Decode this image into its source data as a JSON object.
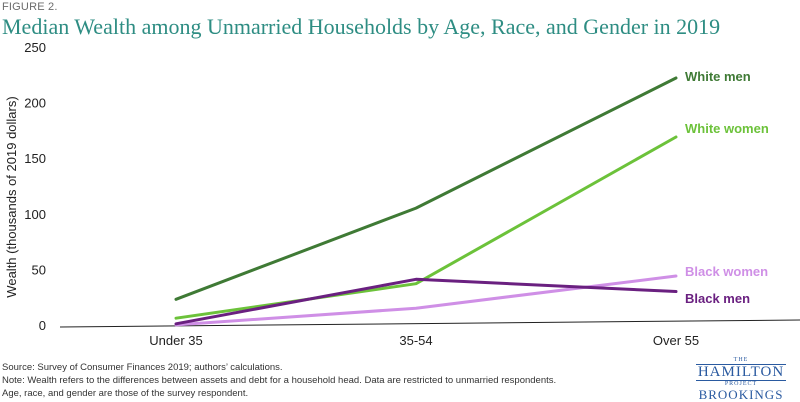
{
  "figure_label": "FIGURE 2.",
  "title": "Median Wealth among Unmarried Households by Age, Race, and Gender in 2019",
  "notes": [
    "Source: Survey of Consumer Finances 2019; authors’ calculations.",
    "Note: Wealth refers to the differences between assets and debt for a household head. Data are restricted to unmarried respondents.",
    "Age, race, and gender are those of the survey respondent."
  ],
  "logo": {
    "the": "THE",
    "hamilton": "HAMILTON",
    "project": "PROJECT",
    "brookings": "BROOKINGS"
  },
  "chart_data": {
    "type": "line",
    "categories": [
      "Under 35",
      "35-54",
      "Over 55"
    ],
    "ylabel": "Wealth  (thousands of 2019 dollars)",
    "ylim": [
      0,
      250
    ],
    "yticks": [
      0,
      50,
      100,
      150,
      200,
      250
    ],
    "grid": false,
    "series": [
      {
        "name": "White men",
        "values": [
          24,
          106,
          223
        ],
        "color": "#3f7a35"
      },
      {
        "name": "White women",
        "values": [
          7,
          38,
          170
        ],
        "color": "#6cc23a"
      },
      {
        "name": "Black women",
        "values": [
          1,
          16,
          45
        ],
        "color": "#cf8fe6"
      },
      {
        "name": "Black men",
        "values": [
          2,
          42,
          31
        ],
        "color": "#6a2080"
      }
    ]
  }
}
